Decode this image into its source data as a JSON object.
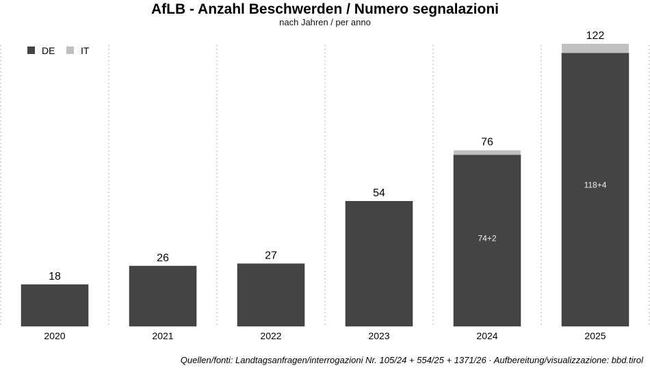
{
  "chart_data": {
    "type": "bar",
    "stacked": true,
    "title": "AfLB - Anzahl Beschwerden / Numero segnalazioni",
    "subtitle": "nach Jahren / per anno",
    "categories": [
      "2020",
      "2021",
      "2022",
      "2023",
      "2024",
      "2025"
    ],
    "series": [
      {
        "name": "DE",
        "color": "#444444",
        "values": [
          18,
          26,
          27,
          54,
          74,
          118
        ]
      },
      {
        "name": "IT",
        "color": "#c0c0c0",
        "values": [
          0,
          0,
          0,
          0,
          2,
          4
        ]
      }
    ],
    "totals": [
      18,
      26,
      27,
      54,
      76,
      122
    ],
    "inner_labels": [
      "",
      "",
      "",
      "",
      "74+2",
      "118+4"
    ],
    "legend_position": "top-left",
    "grid": "vertical dotted",
    "ylim": [
      0,
      122
    ],
    "source": "Quellen/fonti: Landtagsanfragen/interrogazioni Nr. 105/24 + 554/25 + 1371/26 · Aufbereitung/visualizzazione: bbd.tirol"
  }
}
